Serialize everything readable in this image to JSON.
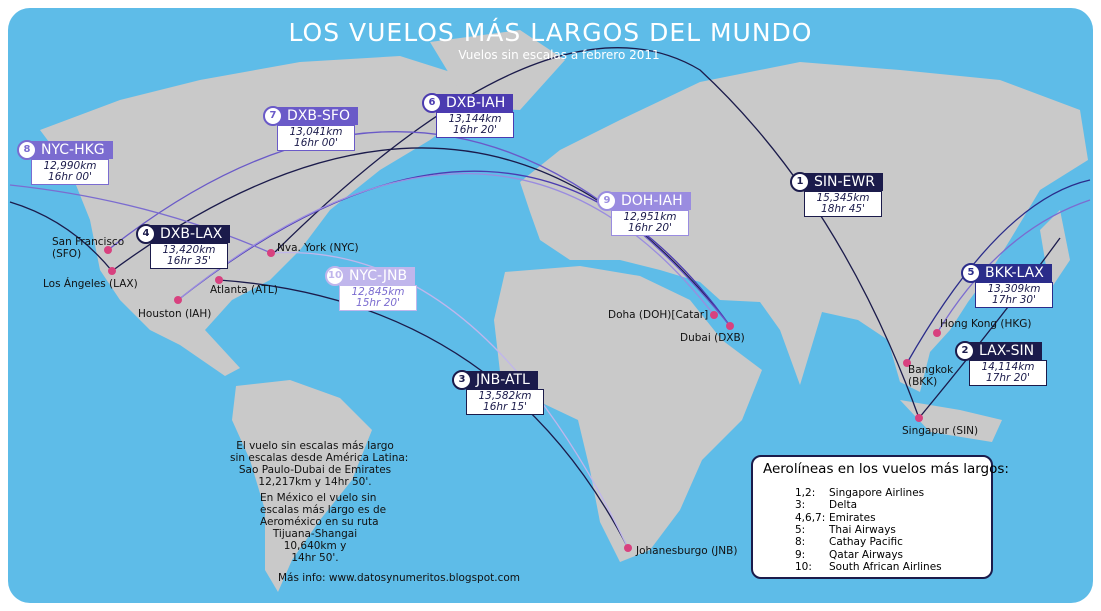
{
  "header": {
    "title": "LOS VUELOS MÁS LARGOS DEL MUNDO",
    "subtitle": "Vuelos sin escalas a febrero 2011"
  },
  "routes": [
    {
      "rank": "1",
      "code": "SIN-EWR",
      "distance": "15,345km",
      "duration": "18hr 45'"
    },
    {
      "rank": "2",
      "code": "LAX-SIN",
      "distance": "14,114km",
      "duration": "17hr 20'"
    },
    {
      "rank": "3",
      "code": "JNB-ATL",
      "distance": "13,582km",
      "duration": "16hr 15'"
    },
    {
      "rank": "4",
      "code": "DXB-LAX",
      "distance": "13,420km",
      "duration": "16hr 35'"
    },
    {
      "rank": "5",
      "code": "BKK-LAX",
      "distance": "13,309km",
      "duration": "17hr 30'"
    },
    {
      "rank": "6",
      "code": "DXB-IAH",
      "distance": "13,144km",
      "duration": "16hr 20'"
    },
    {
      "rank": "7",
      "code": "DXB-SFO",
      "distance": "13,041km",
      "duration": "16hr 00'"
    },
    {
      "rank": "8",
      "code": "NYC-HKG",
      "distance": "12,990km",
      "duration": "16hr 00'"
    },
    {
      "rank": "9",
      "code": "DOH-IAH",
      "distance": "12,951km",
      "duration": "16hr 20'"
    },
    {
      "rank": "10",
      "code": "NYC-JNB",
      "distance": "12,845km",
      "duration": "15hr 20'"
    }
  ],
  "cities": [
    [
      "San Francisco",
      "(SFO)"
    ],
    [
      "Los Ángeles (LAX)"
    ],
    [
      "Houston (IAH)"
    ],
    [
      "Atlanta (ATL)"
    ],
    [
      "Nva. York (NYC)"
    ],
    [
      "Doha (DOH)[Catar]"
    ],
    [
      "Dubai (DXB)"
    ],
    [
      "Johanesburgo (JNB)"
    ],
    [
      "Bangkok",
      "(BKK)"
    ],
    [
      "Hong Kong (HKG)"
    ],
    [
      "Singapur (SIN)"
    ]
  ],
  "note": {
    "paragraph1": [
      "El vuelo sin escalas más largo",
      "sin escalas desde América Latina:",
      "Sao Paulo-Dubai de Emirates",
      "12,217km y 14hr 50'."
    ],
    "paragraph2": [
      "En México el vuelo sin",
      "escalas más largo es de",
      "Aeroméxico en su ruta",
      "Tijuana-Shangai",
      "10,640km y",
      "14hr 50'."
    ],
    "source": "Más info: www.datosynumeritos.blogspot.com"
  },
  "legend": {
    "title": "Aerolíneas en los vuelos más largos:",
    "rows": [
      [
        "1,2:",
        "Singapore Airlines"
      ],
      [
        "3:",
        "Delta"
      ],
      [
        "4,6,7:",
        "Emirates"
      ],
      [
        "5:",
        "Thai Airways"
      ],
      [
        "8:",
        "Cathay Pacific"
      ],
      [
        "9:",
        "Qatar Airways"
      ],
      [
        "10:",
        "South African Airlines"
      ]
    ]
  }
}
